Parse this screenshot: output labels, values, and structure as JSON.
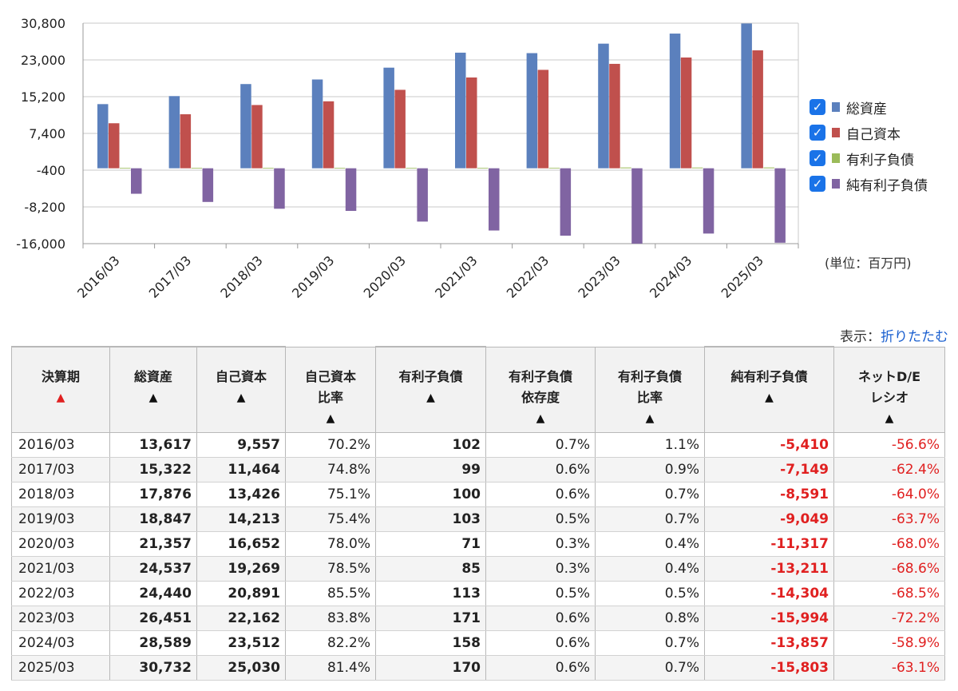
{
  "chart_data": {
    "type": "bar",
    "categories": [
      "2016/03",
      "2017/03",
      "2018/03",
      "2019/03",
      "2020/03",
      "2021/03",
      "2022/03",
      "2023/03",
      "2024/03",
      "2025/03"
    ],
    "series": [
      {
        "name": "総資産",
        "color": "#5b80bd",
        "values": [
          13617,
          15322,
          17876,
          18847,
          21357,
          24537,
          24440,
          26451,
          28589,
          30732
        ]
      },
      {
        "name": "自己資本",
        "color": "#c0504d",
        "values": [
          9557,
          11464,
          13426,
          14213,
          16652,
          19269,
          20891,
          22162,
          23512,
          25030
        ]
      },
      {
        "name": "有利子負債",
        "color": "#9bbb59",
        "values": [
          102,
          99,
          100,
          103,
          71,
          85,
          113,
          171,
          158,
          170
        ]
      },
      {
        "name": "純有利子負債",
        "color": "#8064a2",
        "values": [
          -5410,
          -7149,
          -8591,
          -9049,
          -11317,
          -13211,
          -14304,
          -15994,
          -13857,
          -15803
        ]
      }
    ],
    "y_ticks": [
      "30,800",
      "23,000",
      "15,200",
      "7,400",
      "-400",
      "-8,200",
      "-16,000"
    ],
    "y_tick_values": [
      30800,
      23000,
      15200,
      7400,
      -400,
      -8200,
      -16000
    ],
    "ylim": [
      -16000,
      30800
    ],
    "grid": true,
    "legend_position": "right"
  },
  "legend": {
    "checkmark": "✓",
    "items": [
      {
        "label": "総資産",
        "color": "#5b80bd"
      },
      {
        "label": "自己資本",
        "color": "#c0504d"
      },
      {
        "label": "有利子負債",
        "color": "#9bbb59"
      },
      {
        "label": "純有利子負債",
        "color": "#8064a2"
      }
    ]
  },
  "unit_label": "(単位：百万円)",
  "display": {
    "prefix": "表示：",
    "link": "折りたたむ"
  },
  "table": {
    "sort_icon": "▲",
    "headers": [
      [
        "決算期"
      ],
      [
        "総資産"
      ],
      [
        "自己資本"
      ],
      [
        "自己資本",
        "比率"
      ],
      [
        "有利子負債"
      ],
      [
        "有利子負債",
        "依存度"
      ],
      [
        "有利子負債",
        "比率"
      ],
      [
        "純有利子負債"
      ],
      [
        "ネットD/E",
        "レシオ"
      ]
    ],
    "rows": [
      [
        "2016/03",
        "13,617",
        "9,557",
        "70.2%",
        "102",
        "0.7%",
        "1.1%",
        "-5,410",
        "-56.6%"
      ],
      [
        "2017/03",
        "15,322",
        "11,464",
        "74.8%",
        "99",
        "0.6%",
        "0.9%",
        "-7,149",
        "-62.4%"
      ],
      [
        "2018/03",
        "17,876",
        "13,426",
        "75.1%",
        "100",
        "0.6%",
        "0.7%",
        "-8,591",
        "-64.0%"
      ],
      [
        "2019/03",
        "18,847",
        "14,213",
        "75.4%",
        "103",
        "0.5%",
        "0.7%",
        "-9,049",
        "-63.7%"
      ],
      [
        "2020/03",
        "21,357",
        "16,652",
        "78.0%",
        "71",
        "0.3%",
        "0.4%",
        "-11,317",
        "-68.0%"
      ],
      [
        "2021/03",
        "24,537",
        "19,269",
        "78.5%",
        "85",
        "0.3%",
        "0.4%",
        "-13,211",
        "-68.6%"
      ],
      [
        "2022/03",
        "24,440",
        "20,891",
        "85.5%",
        "113",
        "0.5%",
        "0.5%",
        "-14,304",
        "-68.5%"
      ],
      [
        "2023/03",
        "26,451",
        "22,162",
        "83.8%",
        "171",
        "0.6%",
        "0.8%",
        "-15,994",
        "-72.2%"
      ],
      [
        "2024/03",
        "28,589",
        "23,512",
        "82.2%",
        "158",
        "0.6%",
        "0.7%",
        "-13,857",
        "-58.9%"
      ],
      [
        "2025/03",
        "30,732",
        "25,030",
        "81.4%",
        "170",
        "0.6%",
        "0.7%",
        "-15,803",
        "-63.1%"
      ]
    ]
  }
}
